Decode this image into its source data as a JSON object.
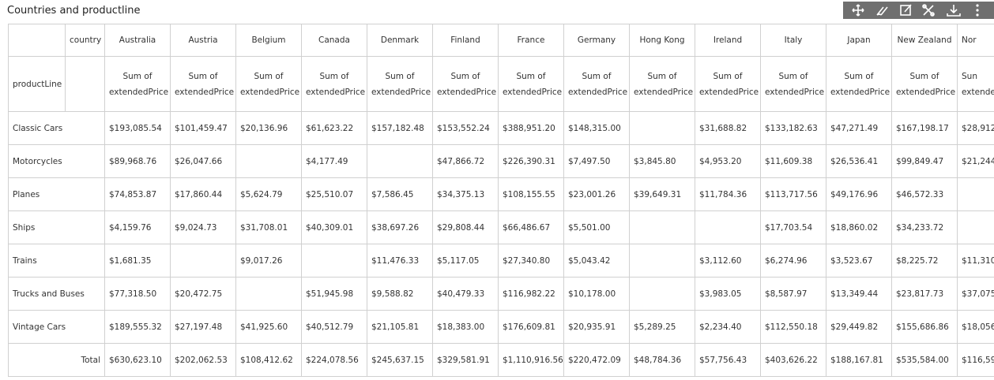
{
  "header": {
    "title": "Countries and productline"
  },
  "table": {
    "corner_label": "country",
    "row_header": "productLine",
    "columns": [
      "Australia",
      "Austria",
      "Belgium",
      "Canada",
      "Denmark",
      "Finland",
      "France",
      "Germany",
      "Hong Kong",
      "Ireland",
      "Italy",
      "Japan",
      "New Zealand",
      "Nor"
    ],
    "measure_labels": [
      [
        "Sum of",
        "extendedPrice"
      ],
      [
        "Sum of",
        "extendedPrice"
      ],
      [
        "Sum of",
        "extendedPrice"
      ],
      [
        "Sum of",
        "extendedPrice"
      ],
      [
        "Sum of",
        "extendedPrice"
      ],
      [
        "Sum of",
        "extendedPrice"
      ],
      [
        "Sum of",
        "extendedPrice"
      ],
      [
        "Sum of",
        "extendedPrice"
      ],
      [
        "Sum of",
        "extendedPrice"
      ],
      [
        "Sum of",
        "extendedPrice"
      ],
      [
        "Sum of",
        "extendedPrice"
      ],
      [
        "Sum of",
        "extendedPrice"
      ],
      [
        "Sum of",
        "extendedPrice"
      ],
      [
        "Sun",
        "extende"
      ]
    ],
    "rows": [
      {
        "label": "Classic Cars",
        "values": [
          "$193,085.54",
          "$101,459.47",
          "$20,136.96",
          "$61,623.22",
          "$157,182.48",
          "$153,552.24",
          "$388,951.20",
          "$148,315.00",
          null,
          "$31,688.82",
          "$133,182.63",
          "$47,271.49",
          "$167,198.17",
          "$28,912"
        ]
      },
      {
        "label": "Motorcycles",
        "values": [
          "$89,968.76",
          "$26,047.66",
          null,
          "$4,177.49",
          null,
          "$47,866.72",
          "$226,390.31",
          "$7,497.50",
          "$3,845.80",
          "$4,953.20",
          "$11,609.38",
          "$26,536.41",
          "$99,849.47",
          "$21,244"
        ]
      },
      {
        "label": "Planes",
        "values": [
          "$74,853.87",
          "$17,860.44",
          "$5,624.79",
          "$25,510.07",
          "$7,586.45",
          "$34,375.13",
          "$108,155.55",
          "$23,001.26",
          "$39,649.31",
          "$11,784.36",
          "$113,717.56",
          "$49,176.96",
          "$46,572.33",
          null
        ]
      },
      {
        "label": "Ships",
        "values": [
          "$4,159.76",
          "$9,024.73",
          "$31,708.01",
          "$40,309.01",
          "$38,697.26",
          "$29,808.44",
          "$66,486.67",
          "$5,501.00",
          null,
          null,
          "$17,703.54",
          "$18,860.02",
          "$34,233.72",
          null
        ]
      },
      {
        "label": "Trains",
        "values": [
          "$1,681.35",
          null,
          "$9,017.26",
          null,
          "$11,476.33",
          "$5,117.05",
          "$27,340.80",
          "$5,043.42",
          null,
          "$3,112.60",
          "$6,274.96",
          "$3,523.67",
          "$8,225.72",
          "$11,310"
        ]
      },
      {
        "label": "Trucks and Buses",
        "values": [
          "$77,318.50",
          "$20,472.75",
          null,
          "$51,945.98",
          "$9,588.82",
          "$40,479.33",
          "$116,982.22",
          "$10,178.00",
          null,
          "$3,983.05",
          "$8,587.97",
          "$13,349.44",
          "$23,817.73",
          "$37,075"
        ]
      },
      {
        "label": "Vintage Cars",
        "values": [
          "$189,555.32",
          "$27,197.48",
          "$41,925.60",
          "$40,512.79",
          "$21,105.81",
          "$18,383.00",
          "$176,609.81",
          "$20,935.91",
          "$5,289.25",
          "$2,234.40",
          "$112,550.18",
          "$29,449.82",
          "$155,686.86",
          "$18,056"
        ]
      }
    ],
    "total": {
      "label": "Total",
      "values": [
        "$630,623.10",
        "$202,062.53",
        "$108,412.62",
        "$224,078.56",
        "$245,637.15",
        "$329,581.91",
        "$1,110,916.56",
        "$220,472.09",
        "$48,784.36",
        "$57,756.43",
        "$403,626.22",
        "$188,167.81",
        "$535,584.00",
        "$116,59"
      ]
    }
  }
}
